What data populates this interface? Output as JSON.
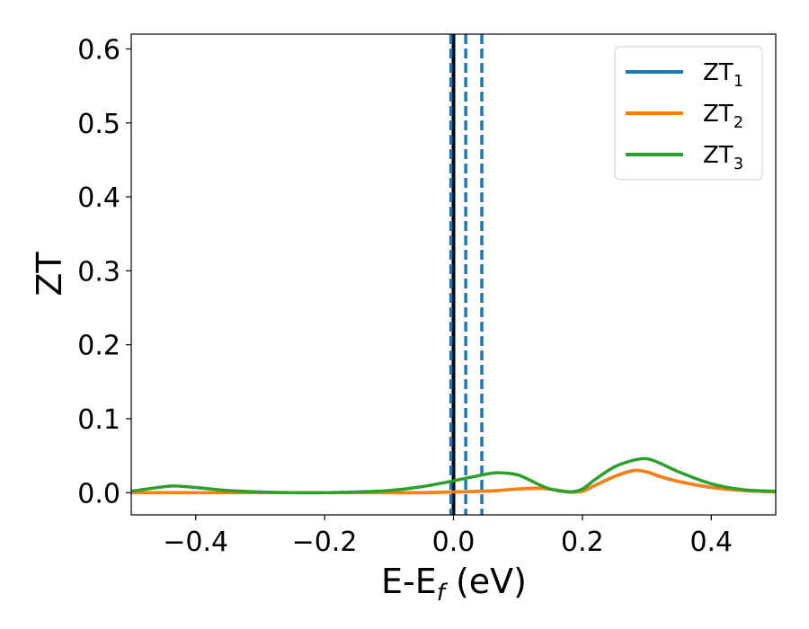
{
  "chart_data": {
    "type": "line",
    "title": "",
    "xlabel": "E-E",
    "xlabel_sub": "f",
    "xlabel_unit": " (eV)",
    "ylabel": "ZT",
    "xlim": [
      -0.5,
      0.5
    ],
    "ylim": [
      -0.03,
      0.62
    ],
    "xticks": [
      -0.4,
      -0.2,
      0.0,
      0.2,
      0.4
    ],
    "xtick_labels": [
      "−0.4",
      "−0.2",
      "0.0",
      "0.2",
      "0.4"
    ],
    "yticks": [
      0.0,
      0.1,
      0.2,
      0.3,
      0.4,
      0.5,
      0.6
    ],
    "ytick_labels": [
      "0.0",
      "0.1",
      "0.2",
      "0.3",
      "0.4",
      "0.5",
      "0.6"
    ],
    "grid": false,
    "legend_position": "top-right",
    "x": [
      -0.5,
      -0.45,
      -0.43,
      -0.4,
      -0.35,
      -0.3,
      -0.25,
      -0.2,
      -0.15,
      -0.1,
      -0.05,
      0.0,
      0.05,
      0.07,
      0.1,
      0.13,
      0.15,
      0.18,
      0.2,
      0.22,
      0.25,
      0.28,
      0.3,
      0.32,
      0.35,
      0.4,
      0.45,
      0.5
    ],
    "series": [
      {
        "name": "ZT",
        "name_sub": "1",
        "color": "#1f77b4",
        "values": [
          0.0,
          0.0,
          0.0,
          0.0,
          0.0,
          0.0,
          0.0,
          0.0,
          0.0,
          0.0,
          0.0,
          0.001,
          0.002,
          0.003,
          0.005,
          0.006,
          0.005,
          0.001,
          0.002,
          0.01,
          0.022,
          0.03,
          0.028,
          0.022,
          0.015,
          0.007,
          0.003,
          0.001
        ]
      },
      {
        "name": "ZT",
        "name_sub": "2",
        "color": "#ff7f0e",
        "values": [
          0.0,
          0.0,
          0.0,
          0.0,
          0.0,
          0.0,
          0.0,
          0.0,
          0.0,
          0.0,
          0.0,
          0.001,
          0.002,
          0.003,
          0.005,
          0.006,
          0.005,
          0.001,
          0.002,
          0.01,
          0.022,
          0.03,
          0.028,
          0.022,
          0.015,
          0.007,
          0.003,
          0.001
        ]
      },
      {
        "name": "ZT",
        "name_sub": "3",
        "color": "#2ca02c",
        "values": [
          0.002,
          0.008,
          0.009,
          0.007,
          0.003,
          0.001,
          0.0,
          0.0,
          0.001,
          0.003,
          0.008,
          0.016,
          0.025,
          0.027,
          0.024,
          0.012,
          0.005,
          0.001,
          0.005,
          0.018,
          0.035,
          0.044,
          0.046,
          0.04,
          0.028,
          0.012,
          0.004,
          0.002
        ]
      }
    ],
    "vlines": [
      {
        "x": 0.0,
        "color": "#000000",
        "style": "solid"
      },
      {
        "x": -0.004,
        "color": "#1f77b4",
        "style": "dashed"
      },
      {
        "x": 0.019,
        "color": "#1f77b4",
        "style": "dashed"
      },
      {
        "x": 0.044,
        "color": "#1f77b4",
        "style": "dashed"
      }
    ]
  }
}
